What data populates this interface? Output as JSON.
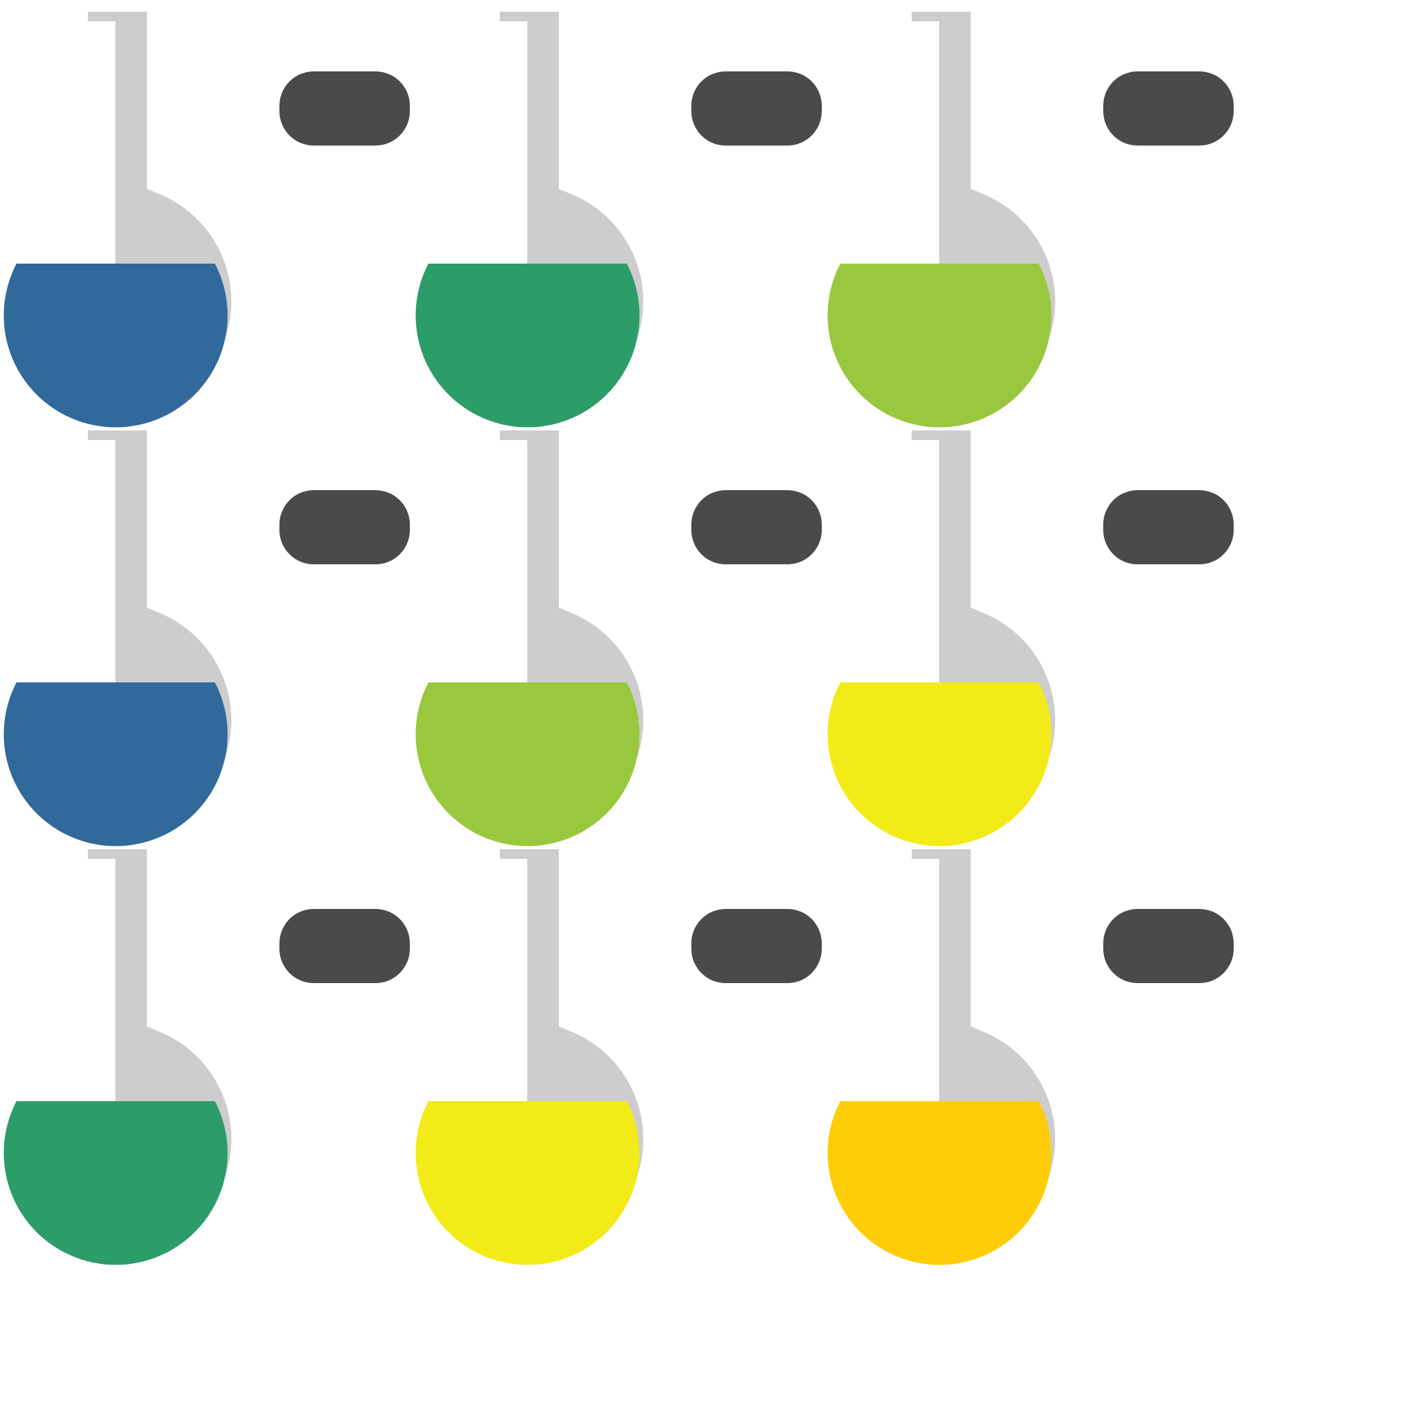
{
  "palette": {
    "flask_shadow": "#cdcdcd",
    "pill": "#4a4a4a",
    "background": "#ffffff"
  },
  "grid": {
    "rows": [
      {
        "cells": [
          {
            "liquid_color": "#30699a",
            "icon": "flask-icon"
          },
          {
            "liquid_color": "#2c9c69",
            "icon": "flask-icon"
          },
          {
            "liquid_color": "#99c83e",
            "icon": "flask-icon"
          }
        ]
      },
      {
        "cells": [
          {
            "liquid_color": "#30699a",
            "icon": "flask-icon"
          },
          {
            "liquid_color": "#99c83e",
            "icon": "flask-icon"
          },
          {
            "liquid_color": "#f2eb18",
            "icon": "flask-icon"
          }
        ]
      },
      {
        "cells": [
          {
            "liquid_color": "#2c9c69",
            "icon": "flask-icon"
          },
          {
            "liquid_color": "#f2eb18",
            "icon": "flask-icon"
          },
          {
            "liquid_color": "#fecd07",
            "icon": "flask-icon"
          }
        ]
      }
    ]
  }
}
